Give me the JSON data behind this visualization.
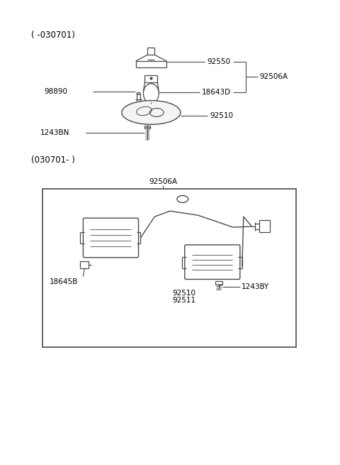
{
  "bg_color": "#ffffff",
  "line_color": "#4a4a4a",
  "text_color": "#000000",
  "fig_width": 4.8,
  "fig_height": 6.55,
  "dpi": 100,
  "section1_label": "( -030701)",
  "section2_label": "(030701- )",
  "label_92550": "92550",
  "label_18643D": "18643D",
  "label_92506A_top": "92506A",
  "label_98890": "98890",
  "label_92510_top": "92510",
  "label_1243BN": "1243BN",
  "label_92506A_bot": "92506A",
  "label_18645B": "18645B",
  "label_92510_bot": "92510",
  "label_92511": "92511",
  "label_1243BY": "1243BY"
}
